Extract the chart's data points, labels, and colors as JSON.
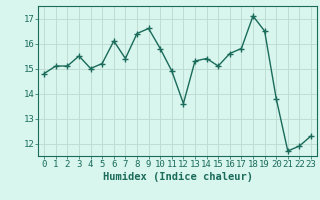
{
  "x": [
    0,
    1,
    2,
    3,
    4,
    5,
    6,
    7,
    8,
    9,
    10,
    11,
    12,
    13,
    14,
    15,
    16,
    17,
    18,
    19,
    20,
    21,
    22,
    23
  ],
  "y": [
    14.8,
    15.1,
    15.1,
    15.5,
    15.0,
    15.2,
    16.1,
    15.4,
    16.4,
    16.6,
    15.8,
    14.9,
    13.6,
    15.3,
    15.4,
    15.1,
    15.6,
    15.8,
    17.1,
    16.5,
    13.8,
    11.7,
    11.9,
    12.3
  ],
  "xlabel": "Humidex (Indice chaleur)",
  "ylim": [
    11.5,
    17.5
  ],
  "yticks": [
    12,
    13,
    14,
    15,
    16,
    17
  ],
  "xlim": [
    -0.5,
    23.5
  ],
  "xticks": [
    0,
    1,
    2,
    3,
    4,
    5,
    6,
    7,
    8,
    9,
    10,
    11,
    12,
    13,
    14,
    15,
    16,
    17,
    18,
    19,
    20,
    21,
    22,
    23
  ],
  "line_color": "#1a6b5a",
  "marker": "+",
  "marker_size": 4,
  "bg_color": "#d8f5ee",
  "grid_color": "#c0ddd4",
  "label_color": "#1a6b5a",
  "font_name": "monospace",
  "xlabel_fontsize": 7.5,
  "tick_fontsize": 6.5
}
